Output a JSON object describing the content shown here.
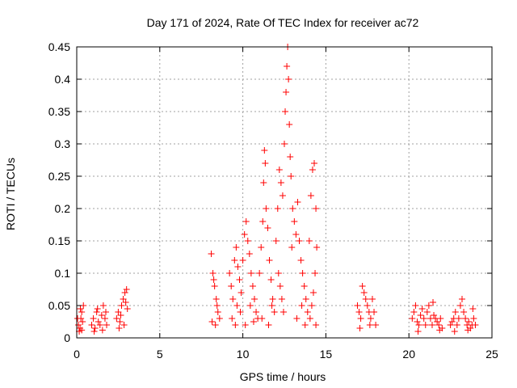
{
  "chart_data": {
    "type": "scatter",
    "title": "Day 171 of 2024, Rate Of TEC Index for receiver ac72",
    "xlabel": "GPS time / hours",
    "ylabel": "ROTI / TECUs",
    "xlim": [
      0,
      25
    ],
    "ylim": [
      0,
      0.45
    ],
    "xticks": [
      0,
      5,
      10,
      15,
      20,
      25
    ],
    "xtick_labels": [
      "0",
      "5",
      "10",
      "15",
      "20",
      "25"
    ],
    "yticks": [
      0,
      0.05,
      0.1,
      0.15,
      0.2,
      0.25,
      0.3,
      0.35,
      0.4,
      0.45
    ],
    "ytick_labels": [
      "0",
      "0.05",
      "0.1",
      "0.15",
      "0.2",
      "0.25",
      "0.3",
      "0.35",
      "0.4",
      "0.45"
    ],
    "grid": true,
    "marker": "plus",
    "color": "#ff0000",
    "points": [
      [
        0.1,
        0.02
      ],
      [
        0.2,
        0.015
      ],
      [
        0.25,
        0.03
      ],
      [
        0.3,
        0.04
      ],
      [
        0.35,
        0.025
      ],
      [
        0.4,
        0.05
      ],
      [
        0.15,
        0.01
      ],
      [
        0.05,
        0.03
      ],
      [
        0.3,
        0.012
      ],
      [
        0.22,
        0.045
      ],
      [
        0.9,
        0.02
      ],
      [
        1.0,
        0.03
      ],
      [
        1.1,
        0.015
      ],
      [
        1.2,
        0.04
      ],
      [
        1.3,
        0.025
      ],
      [
        1.4,
        0.02
      ],
      [
        1.5,
        0.035
      ],
      [
        1.6,
        0.05
      ],
      [
        1.7,
        0.03
      ],
      [
        1.8,
        0.02
      ],
      [
        1.25,
        0.045
      ],
      [
        1.55,
        0.012
      ],
      [
        1.05,
        0.01
      ],
      [
        1.75,
        0.04
      ],
      [
        2.4,
        0.03
      ],
      [
        2.5,
        0.04
      ],
      [
        2.6,
        0.025
      ],
      [
        2.7,
        0.05
      ],
      [
        2.8,
        0.06
      ],
      [
        2.9,
        0.07
      ],
      [
        3.0,
        0.075
      ],
      [
        3.05,
        0.045
      ],
      [
        2.55,
        0.015
      ],
      [
        2.85,
        0.02
      ],
      [
        2.95,
        0.055
      ],
      [
        2.65,
        0.035
      ],
      [
        8.1,
        0.13
      ],
      [
        8.2,
        0.1
      ],
      [
        8.3,
        0.08
      ],
      [
        8.4,
        0.06
      ],
      [
        8.5,
        0.04
      ],
      [
        8.6,
        0.03
      ],
      [
        8.15,
        0.025
      ],
      [
        8.35,
        0.02
      ],
      [
        8.45,
        0.05
      ],
      [
        8.25,
        0.09
      ],
      [
        9.2,
        0.1
      ],
      [
        9.3,
        0.08
      ],
      [
        9.4,
        0.06
      ],
      [
        9.5,
        0.12
      ],
      [
        9.6,
        0.14
      ],
      [
        9.7,
        0.11
      ],
      [
        9.8,
        0.09
      ],
      [
        9.9,
        0.07
      ],
      [
        9.35,
        0.03
      ],
      [
        9.55,
        0.02
      ],
      [
        9.65,
        0.05
      ],
      [
        9.85,
        0.04
      ],
      [
        10.0,
        0.12
      ],
      [
        10.1,
        0.16
      ],
      [
        10.2,
        0.18
      ],
      [
        10.3,
        0.15
      ],
      [
        10.4,
        0.13
      ],
      [
        10.5,
        0.1
      ],
      [
        10.6,
        0.08
      ],
      [
        10.7,
        0.06
      ],
      [
        10.8,
        0.04
      ],
      [
        10.9,
        0.03
      ],
      [
        10.15,
        0.02
      ],
      [
        10.45,
        0.05
      ],
      [
        10.65,
        0.025
      ],
      [
        11.0,
        0.1
      ],
      [
        11.1,
        0.14
      ],
      [
        11.2,
        0.18
      ],
      [
        11.3,
        0.29
      ],
      [
        11.35,
        0.27
      ],
      [
        11.25,
        0.24
      ],
      [
        11.4,
        0.2
      ],
      [
        11.5,
        0.17
      ],
      [
        11.6,
        0.12
      ],
      [
        11.7,
        0.09
      ],
      [
        11.8,
        0.06
      ],
      [
        11.9,
        0.04
      ],
      [
        11.15,
        0.03
      ],
      [
        11.55,
        0.02
      ],
      [
        11.75,
        0.05
      ],
      [
        12.0,
        0.15
      ],
      [
        12.1,
        0.2
      ],
      [
        12.2,
        0.26
      ],
      [
        12.3,
        0.24
      ],
      [
        12.4,
        0.22
      ],
      [
        12.5,
        0.3
      ],
      [
        12.55,
        0.35
      ],
      [
        12.6,
        0.38
      ],
      [
        12.65,
        0.42
      ],
      [
        12.7,
        0.45
      ],
      [
        12.75,
        0.4
      ],
      [
        12.8,
        0.33
      ],
      [
        12.85,
        0.28
      ],
      [
        12.9,
        0.25
      ],
      [
        12.15,
        0.1
      ],
      [
        12.25,
        0.08
      ],
      [
        12.35,
        0.06
      ],
      [
        12.45,
        0.04
      ],
      [
        12.95,
        0.14
      ],
      [
        13.0,
        0.2
      ],
      [
        13.1,
        0.18
      ],
      [
        13.2,
        0.16
      ],
      [
        13.3,
        0.21
      ],
      [
        13.4,
        0.15
      ],
      [
        13.5,
        0.12
      ],
      [
        13.6,
        0.1
      ],
      [
        13.7,
        0.08
      ],
      [
        13.8,
        0.06
      ],
      [
        13.9,
        0.04
      ],
      [
        13.25,
        0.03
      ],
      [
        13.55,
        0.05
      ],
      [
        13.75,
        0.02
      ],
      [
        14.0,
        0.15
      ],
      [
        14.1,
        0.22
      ],
      [
        14.2,
        0.26
      ],
      [
        14.3,
        0.27
      ],
      [
        14.4,
        0.2
      ],
      [
        14.45,
        0.14
      ],
      [
        14.35,
        0.1
      ],
      [
        14.25,
        0.07
      ],
      [
        14.15,
        0.05
      ],
      [
        14.05,
        0.03
      ],
      [
        14.4,
        0.02
      ],
      [
        16.9,
        0.05
      ],
      [
        17.0,
        0.04
      ],
      [
        17.1,
        0.03
      ],
      [
        17.2,
        0.08
      ],
      [
        17.3,
        0.07
      ],
      [
        17.4,
        0.06
      ],
      [
        17.5,
        0.05
      ],
      [
        17.6,
        0.04
      ],
      [
        17.7,
        0.03
      ],
      [
        17.8,
        0.06
      ],
      [
        17.9,
        0.04
      ],
      [
        18.0,
        0.02
      ],
      [
        17.05,
        0.015
      ],
      [
        17.65,
        0.02
      ],
      [
        20.2,
        0.03
      ],
      [
        20.3,
        0.04
      ],
      [
        20.4,
        0.05
      ],
      [
        20.5,
        0.025
      ],
      [
        20.6,
        0.02
      ],
      [
        20.7,
        0.035
      ],
      [
        20.8,
        0.045
      ],
      [
        20.9,
        0.03
      ],
      [
        21.0,
        0.02
      ],
      [
        21.1,
        0.04
      ],
      [
        21.2,
        0.05
      ],
      [
        21.3,
        0.03
      ],
      [
        21.4,
        0.02
      ],
      [
        21.5,
        0.035
      ],
      [
        21.6,
        0.03
      ],
      [
        21.7,
        0.025
      ],
      [
        21.8,
        0.02
      ],
      [
        21.9,
        0.03
      ],
      [
        22.0,
        0.015
      ],
      [
        21.45,
        0.055
      ],
      [
        20.55,
        0.01
      ],
      [
        21.85,
        0.012
      ],
      [
        22.5,
        0.02
      ],
      [
        22.6,
        0.025
      ],
      [
        22.7,
        0.03
      ],
      [
        22.8,
        0.04
      ],
      [
        22.9,
        0.02
      ],
      [
        23.0,
        0.03
      ],
      [
        23.1,
        0.05
      ],
      [
        23.2,
        0.06
      ],
      [
        23.3,
        0.04
      ],
      [
        23.4,
        0.03
      ],
      [
        23.5,
        0.02
      ],
      [
        23.6,
        0.025
      ],
      [
        23.7,
        0.015
      ],
      [
        23.8,
        0.02
      ],
      [
        23.9,
        0.03
      ],
      [
        24.0,
        0.02
      ],
      [
        23.85,
        0.045
      ],
      [
        22.75,
        0.01
      ],
      [
        23.55,
        0.012
      ]
    ]
  }
}
